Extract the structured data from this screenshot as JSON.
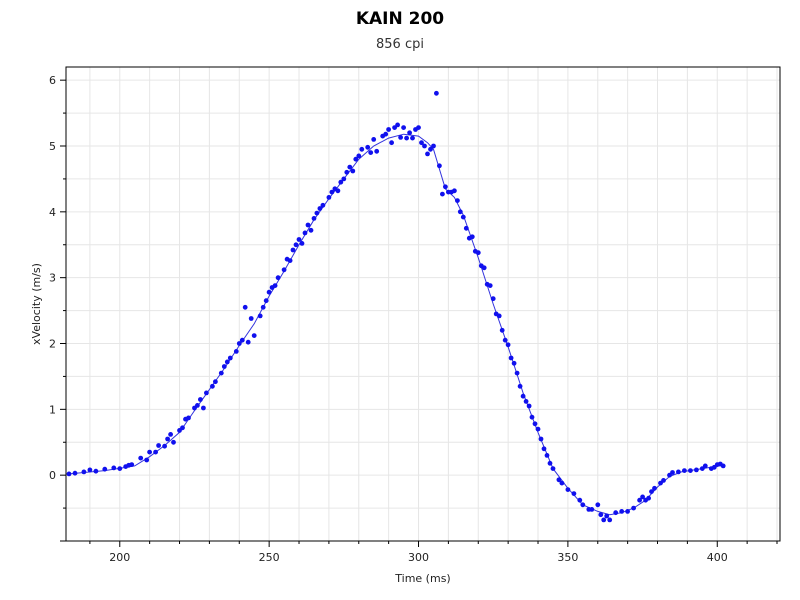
{
  "chart_data": {
    "type": "scatter",
    "title": "KAIN 200",
    "subtitle": "856 cpi",
    "xlabel": "Time (ms)",
    "ylabel": "xVelocity (m/s)",
    "xlim": [
      182,
      421
    ],
    "ylim": [
      -1.0,
      6.2
    ],
    "xticks": [
      200,
      250,
      300,
      350,
      400
    ],
    "yticks": [
      0,
      1,
      2,
      3,
      4,
      5,
      6
    ],
    "grid": true,
    "colors": {
      "points": "#1010ee",
      "line": "#3333dd",
      "grid": "#e6e6e6",
      "axis": "#000000"
    },
    "series": [
      {
        "type": "scatter",
        "points": [
          [
            183,
            0.02
          ],
          [
            185,
            0.03
          ],
          [
            188,
            0.05
          ],
          [
            190,
            0.08
          ],
          [
            192,
            0.06
          ],
          [
            195,
            0.09
          ],
          [
            198,
            0.11
          ],
          [
            200,
            0.1
          ],
          [
            202,
            0.13
          ],
          [
            203,
            0.15
          ],
          [
            204,
            0.16
          ],
          [
            207,
            0.26
          ],
          [
            209,
            0.23
          ],
          [
            210,
            0.35
          ],
          [
            212,
            0.35
          ],
          [
            213,
            0.45
          ],
          [
            215,
            0.44
          ],
          [
            216,
            0.55
          ],
          [
            217,
            0.62
          ],
          [
            218,
            0.5
          ],
          [
            220,
            0.68
          ],
          [
            221,
            0.72
          ],
          [
            222,
            0.85
          ],
          [
            223,
            0.87
          ],
          [
            225,
            1.02
          ],
          [
            226,
            1.06
          ],
          [
            227,
            1.15
          ],
          [
            228,
            1.02
          ],
          [
            229,
            1.25
          ],
          [
            231,
            1.35
          ],
          [
            232,
            1.42
          ],
          [
            234,
            1.55
          ],
          [
            235,
            1.65
          ],
          [
            236,
            1.72
          ],
          [
            237,
            1.78
          ],
          [
            239,
            1.88
          ],
          [
            240,
            2.0
          ],
          [
            241,
            2.05
          ],
          [
            242,
            2.55
          ],
          [
            243,
            2.02
          ],
          [
            244,
            2.38
          ],
          [
            245,
            2.12
          ],
          [
            247,
            2.42
          ],
          [
            248,
            2.55
          ],
          [
            249,
            2.65
          ],
          [
            250,
            2.78
          ],
          [
            251,
            2.85
          ],
          [
            252,
            2.88
          ],
          [
            253,
            3.0
          ],
          [
            255,
            3.12
          ],
          [
            256,
            3.28
          ],
          [
            257,
            3.26
          ],
          [
            258,
            3.42
          ],
          [
            259,
            3.5
          ],
          [
            260,
            3.58
          ],
          [
            261,
            3.52
          ],
          [
            262,
            3.68
          ],
          [
            263,
            3.8
          ],
          [
            264,
            3.72
          ],
          [
            265,
            3.9
          ],
          [
            266,
            3.98
          ],
          [
            267,
            4.05
          ],
          [
            268,
            4.1
          ],
          [
            270,
            4.22
          ],
          [
            271,
            4.3
          ],
          [
            272,
            4.35
          ],
          [
            273,
            4.32
          ],
          [
            274,
            4.45
          ],
          [
            275,
            4.5
          ],
          [
            276,
            4.6
          ],
          [
            277,
            4.68
          ],
          [
            278,
            4.62
          ],
          [
            279,
            4.8
          ],
          [
            280,
            4.85
          ],
          [
            281,
            4.95
          ],
          [
            283,
            4.98
          ],
          [
            284,
            4.9
          ],
          [
            285,
            5.1
          ],
          [
            286,
            4.92
          ],
          [
            288,
            5.15
          ],
          [
            289,
            5.18
          ],
          [
            290,
            5.25
          ],
          [
            291,
            5.05
          ],
          [
            292,
            5.28
          ],
          [
            293,
            5.32
          ],
          [
            294,
            5.13
          ],
          [
            295,
            5.28
          ],
          [
            296,
            5.12
          ],
          [
            297,
            5.2
          ],
          [
            298,
            5.12
          ],
          [
            299,
            5.25
          ],
          [
            300,
            5.28
          ],
          [
            301,
            5.05
          ],
          [
            302,
            5.0
          ],
          [
            303,
            4.88
          ],
          [
            304,
            4.95
          ],
          [
            305,
            5.0
          ],
          [
            306,
            5.8
          ],
          [
            307,
            4.7
          ],
          [
            308,
            4.27
          ],
          [
            309,
            4.38
          ],
          [
            310,
            4.3
          ],
          [
            311,
            4.3
          ],
          [
            312,
            4.32
          ],
          [
            313,
            4.17
          ],
          [
            314,
            4.0
          ],
          [
            315,
            3.92
          ],
          [
            316,
            3.75
          ],
          [
            317,
            3.6
          ],
          [
            318,
            3.62
          ],
          [
            319,
            3.4
          ],
          [
            320,
            3.38
          ],
          [
            321,
            3.18
          ],
          [
            322,
            3.15
          ],
          [
            323,
            2.9
          ],
          [
            324,
            2.88
          ],
          [
            325,
            2.68
          ],
          [
            326,
            2.45
          ],
          [
            327,
            2.42
          ],
          [
            328,
            2.2
          ],
          [
            329,
            2.05
          ],
          [
            330,
            1.98
          ],
          [
            331,
            1.78
          ],
          [
            332,
            1.7
          ],
          [
            333,
            1.55
          ],
          [
            334,
            1.35
          ],
          [
            335,
            1.2
          ],
          [
            336,
            1.12
          ],
          [
            337,
            1.05
          ],
          [
            338,
            0.88
          ],
          [
            339,
            0.78
          ],
          [
            340,
            0.7
          ],
          [
            341,
            0.55
          ],
          [
            342,
            0.4
          ],
          [
            343,
            0.3
          ],
          [
            344,
            0.18
          ],
          [
            345,
            0.1
          ],
          [
            347,
            -0.07
          ],
          [
            348,
            -0.12
          ],
          [
            350,
            -0.22
          ],
          [
            352,
            -0.28
          ],
          [
            354,
            -0.38
          ],
          [
            355,
            -0.45
          ],
          [
            357,
            -0.52
          ],
          [
            358,
            -0.52
          ],
          [
            360,
            -0.45
          ],
          [
            361,
            -0.6
          ],
          [
            362,
            -0.68
          ],
          [
            363,
            -0.62
          ],
          [
            364,
            -0.68
          ],
          [
            366,
            -0.57
          ],
          [
            368,
            -0.55
          ],
          [
            370,
            -0.55
          ],
          [
            372,
            -0.5
          ],
          [
            374,
            -0.38
          ],
          [
            375,
            -0.33
          ],
          [
            376,
            -0.38
          ],
          [
            377,
            -0.35
          ],
          [
            378,
            -0.25
          ],
          [
            379,
            -0.2
          ],
          [
            381,
            -0.12
          ],
          [
            382,
            -0.08
          ],
          [
            384,
            0.0
          ],
          [
            385,
            0.04
          ],
          [
            387,
            0.05
          ],
          [
            389,
            0.07
          ],
          [
            391,
            0.07
          ],
          [
            393,
            0.08
          ],
          [
            395,
            0.1
          ],
          [
            396,
            0.14
          ],
          [
            398,
            0.1
          ],
          [
            399,
            0.12
          ],
          [
            400,
            0.16
          ],
          [
            401,
            0.17
          ],
          [
            402,
            0.14
          ]
        ]
      },
      {
        "type": "line",
        "points": [
          [
            183,
            0.02
          ],
          [
            195,
            0.07
          ],
          [
            205,
            0.14
          ],
          [
            210,
            0.28
          ],
          [
            215,
            0.45
          ],
          [
            220,
            0.65
          ],
          [
            225,
            0.98
          ],
          [
            230,
            1.3
          ],
          [
            235,
            1.62
          ],
          [
            240,
            1.97
          ],
          [
            245,
            2.3
          ],
          [
            250,
            2.72
          ],
          [
            255,
            3.1
          ],
          [
            260,
            3.5
          ],
          [
            265,
            3.88
          ],
          [
            270,
            4.2
          ],
          [
            275,
            4.5
          ],
          [
            280,
            4.8
          ],
          [
            285,
            5.0
          ],
          [
            290,
            5.12
          ],
          [
            295,
            5.18
          ],
          [
            300,
            5.15
          ],
          [
            303,
            5.05
          ],
          [
            305,
            4.95
          ],
          [
            307,
            4.65
          ],
          [
            309,
            4.35
          ],
          [
            312,
            4.22
          ],
          [
            315,
            3.95
          ],
          [
            320,
            3.3
          ],
          [
            325,
            2.6
          ],
          [
            330,
            1.95
          ],
          [
            335,
            1.25
          ],
          [
            340,
            0.65
          ],
          [
            345,
            0.1
          ],
          [
            350,
            -0.2
          ],
          [
            355,
            -0.45
          ],
          [
            360,
            -0.55
          ],
          [
            364,
            -0.6
          ],
          [
            368,
            -0.57
          ],
          [
            372,
            -0.5
          ],
          [
            376,
            -0.38
          ],
          [
            380,
            -0.18
          ],
          [
            384,
            -0.02
          ],
          [
            388,
            0.05
          ],
          [
            395,
            0.1
          ],
          [
            402,
            0.15
          ]
        ]
      }
    ]
  }
}
